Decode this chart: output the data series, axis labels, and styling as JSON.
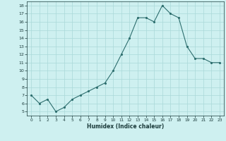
{
  "xlabel": "Humidex (Indice chaleur)",
  "x": [
    0,
    1,
    2,
    3,
    4,
    5,
    6,
    7,
    8,
    9,
    10,
    11,
    12,
    13,
    14,
    15,
    16,
    17,
    18,
    19,
    20,
    21,
    22,
    23
  ],
  "y": [
    7,
    6,
    6.5,
    5,
    5.5,
    6.5,
    7,
    7.5,
    8,
    8.5,
    10,
    12,
    14,
    16.5,
    16.5,
    16,
    18,
    17,
    16.5,
    13,
    11.5,
    11.5,
    11,
    11
  ],
  "line_color": "#2d6e6e",
  "bg_color": "#cef0f0",
  "grid_color": "#aad8d8",
  "text_color": "#1a3a3a",
  "ylim": [
    4.5,
    18.5
  ],
  "xlim": [
    -0.5,
    23.5
  ],
  "yticks": [
    5,
    6,
    7,
    8,
    9,
    10,
    11,
    12,
    13,
    14,
    15,
    16,
    17,
    18
  ],
  "xticks": [
    0,
    1,
    2,
    3,
    4,
    5,
    6,
    7,
    8,
    9,
    10,
    11,
    12,
    13,
    14,
    15,
    16,
    17,
    18,
    19,
    20,
    21,
    22,
    23
  ]
}
